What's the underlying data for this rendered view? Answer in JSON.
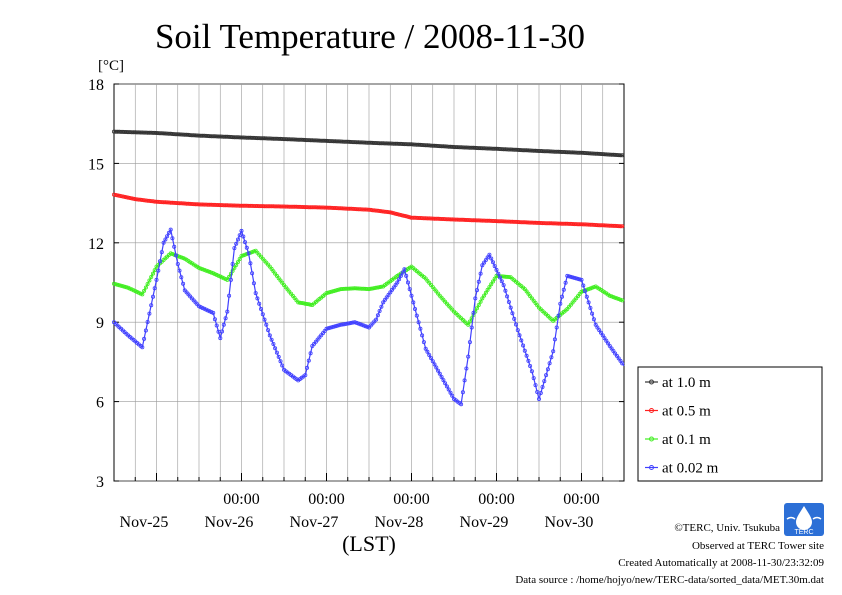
{
  "chart_data": {
    "type": "line",
    "title": "Soil Temperature / 2008-11-30",
    "unit_label": "[°C]",
    "xlabel": "(LST)",
    "ylabel": "",
    "ylim": [
      3,
      18
    ],
    "yticks": [
      "3",
      "6",
      "9",
      "12",
      "15",
      "18"
    ],
    "x_unit": "hours since start of Nov-24 (LST)",
    "xlim": [
      12,
      156
    ],
    "x_time_ticks": [
      "00:00",
      "00:00",
      "00:00",
      "00:00",
      "00:00"
    ],
    "x_date_ticks": [
      "Nov-25",
      "Nov-26",
      "Nov-27",
      "Nov-28",
      "Nov-29",
      "Nov-30"
    ],
    "grid": true,
    "legend_position": "right",
    "series": [
      {
        "name": "at 1.0 m",
        "color": "#333333",
        "x": [
          12,
          24,
          36,
          48,
          60,
          72,
          84,
          96,
          108,
          120,
          132,
          144,
          156
        ],
        "y": [
          16.2,
          16.15,
          16.05,
          15.98,
          15.92,
          15.85,
          15.78,
          15.72,
          15.62,
          15.55,
          15.47,
          15.4,
          15.3
        ]
      },
      {
        "name": "at 0.5 m",
        "color": "#ff2020",
        "x": [
          12,
          18,
          24,
          36,
          48,
          60,
          72,
          84,
          90,
          96,
          108,
          120,
          132,
          144,
          156
        ],
        "y": [
          13.82,
          13.65,
          13.55,
          13.45,
          13.4,
          13.37,
          13.33,
          13.25,
          13.15,
          12.95,
          12.88,
          12.82,
          12.75,
          12.7,
          12.62
        ]
      },
      {
        "name": "at 0.1 m",
        "color": "#40ee20",
        "x": [
          12,
          16,
          20,
          24,
          28,
          32,
          36,
          40,
          44,
          48,
          52,
          56,
          60,
          64,
          68,
          72,
          76,
          80,
          84,
          88,
          92,
          96,
          100,
          104,
          108,
          112,
          116,
          120,
          124,
          128,
          132,
          136,
          140,
          144,
          148,
          152,
          156
        ],
        "y": [
          10.45,
          10.3,
          10.05,
          11.1,
          11.6,
          11.4,
          11.05,
          10.85,
          10.6,
          11.5,
          11.7,
          11.1,
          10.4,
          9.75,
          9.65,
          10.1,
          10.25,
          10.28,
          10.25,
          10.35,
          10.75,
          11.1,
          10.65,
          10.0,
          9.4,
          8.9,
          9.9,
          10.75,
          10.7,
          10.25,
          9.55,
          9.05,
          9.5,
          10.15,
          10.35,
          10.0,
          9.8
        ]
      },
      {
        "name": "at 0.02 m",
        "color": "#4040ff",
        "x": [
          12,
          16,
          20,
          24,
          26,
          28,
          30,
          32,
          36,
          40,
          42,
          44,
          46,
          48,
          50,
          52,
          56,
          60,
          64,
          66,
          68,
          72,
          76,
          80,
          84,
          86,
          88,
          92,
          94,
          96,
          100,
          104,
          108,
          110,
          112,
          114,
          116,
          118,
          122,
          126,
          130,
          132,
          136,
          138,
          140,
          144,
          148,
          152,
          156
        ],
        "y": [
          9.0,
          8.5,
          8.05,
          10.6,
          12.0,
          12.5,
          11.2,
          10.2,
          9.6,
          9.35,
          8.4,
          9.4,
          11.8,
          12.45,
          11.6,
          10.1,
          8.5,
          7.2,
          6.8,
          7.0,
          8.1,
          8.75,
          8.9,
          9.0,
          8.8,
          9.1,
          9.75,
          10.5,
          11.0,
          10.0,
          8.0,
          7.05,
          6.1,
          5.9,
          7.7,
          9.9,
          11.15,
          11.55,
          10.4,
          8.7,
          7.15,
          6.1,
          7.9,
          9.7,
          10.75,
          10.6,
          8.9,
          8.1,
          7.35
        ]
      }
    ]
  },
  "credits": {
    "copyright": "©TERC, Univ. Tsukuba",
    "observed": "Observed at TERC Tower site",
    "created": "Created Automatically at 2008-11-30/23:32:09",
    "source": "Data source : /home/hojyo/new/TERC-data/sorted_data/MET.30m.dat",
    "logo_text": "TERC"
  }
}
